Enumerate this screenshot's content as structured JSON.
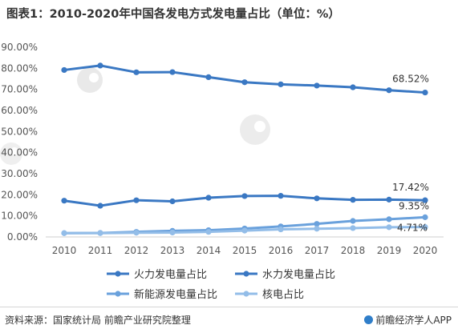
{
  "title": "图表1：2010-2020年中国各发电方式发电量占比（单位：%）",
  "footer": {
    "source": "资料来源：国家统计局 前瞻产业研究院整理",
    "brand": "前瞻经济学人APP"
  },
  "chart_data": {
    "type": "line",
    "x": [
      "2010",
      "2011",
      "2012",
      "2013",
      "2014",
      "2015",
      "2016",
      "2017",
      "2018",
      "2019",
      "2020"
    ],
    "ylim": [
      0,
      90
    ],
    "yticks": [
      "0.00%",
      "10.00%",
      "20.00%",
      "30.00%",
      "40.00%",
      "50.00%",
      "60.00%",
      "70.00%",
      "80.00%",
      "90.00%"
    ],
    "grid": false,
    "legend_position": "bottom",
    "series": [
      {
        "name": "火力发电量占比",
        "color": "#3a78c3",
        "values": [
          79.2,
          81.3,
          78.1,
          78.2,
          75.8,
          73.4,
          72.4,
          71.8,
          71.0,
          69.6,
          68.52
        ],
        "end_label": "68.52%"
      },
      {
        "name": "水力发电量占比",
        "color": "#3a78c3",
        "values": [
          17.2,
          14.8,
          17.4,
          16.9,
          18.6,
          19.4,
          19.5,
          18.3,
          17.6,
          17.7,
          17.42
        ],
        "end_label": "17.42%"
      },
      {
        "name": "新能源发电量占比",
        "color": "#6aa1dc",
        "values": [
          1.8,
          1.9,
          2.4,
          2.9,
          3.2,
          4.0,
          5.0,
          6.2,
          7.6,
          8.4,
          9.35
        ],
        "end_label": "9.35%"
      },
      {
        "name": "核电占比",
        "color": "#93bde8",
        "values": [
          1.8,
          1.8,
          2.0,
          2.1,
          2.4,
          3.0,
          3.6,
          3.9,
          4.2,
          4.6,
          4.71
        ],
        "end_label": "4.71%"
      }
    ]
  }
}
